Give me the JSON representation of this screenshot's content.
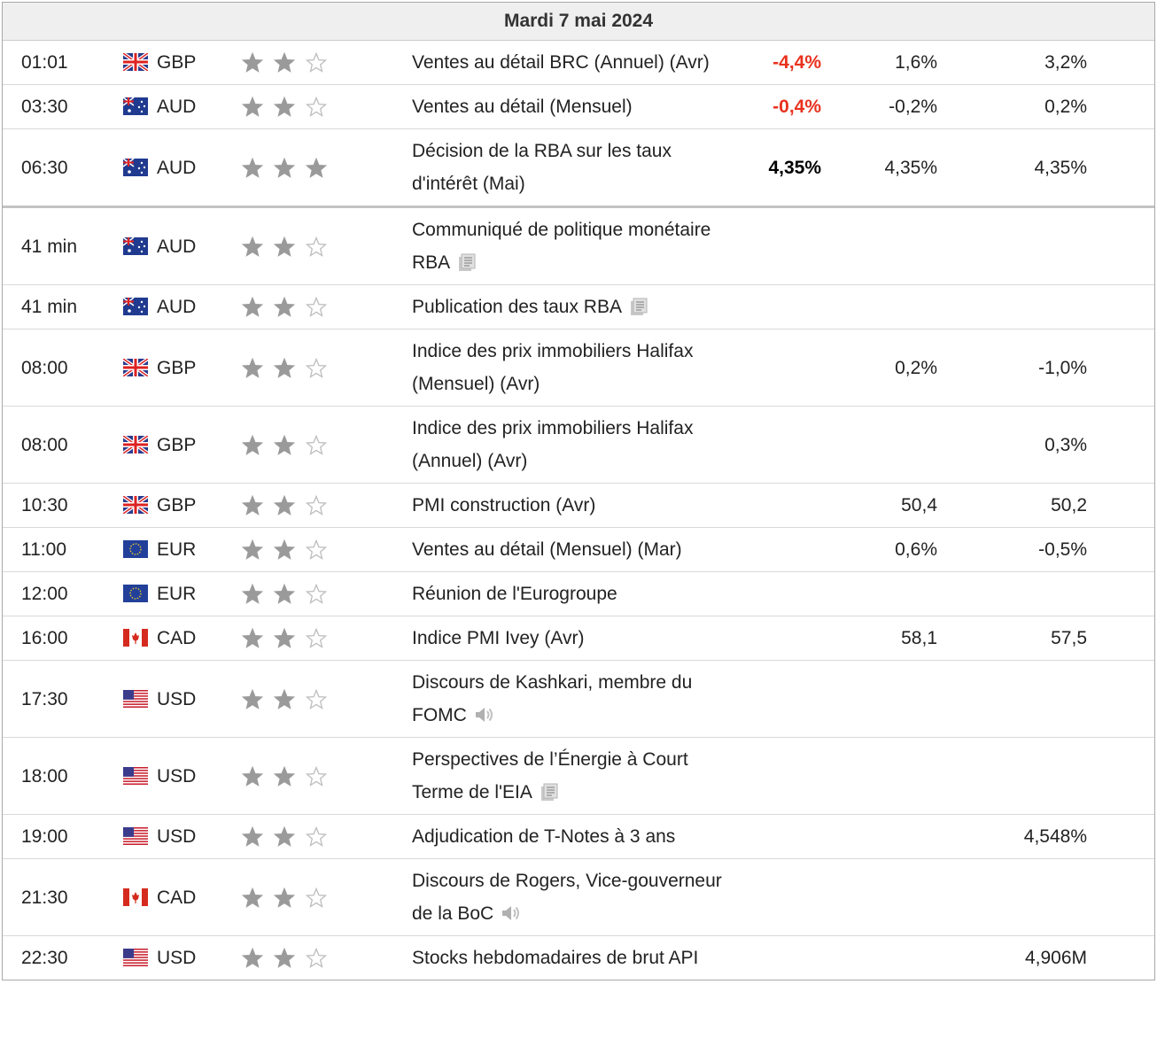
{
  "header": {
    "title": "Mardi 7 mai 2024"
  },
  "rows": [
    {
      "time": "01:01",
      "currency": "GBP",
      "importance": 2,
      "event": "Ventes au détail BRC (Annuel) (Avr)",
      "actual": "-4,4%",
      "actual_color": "#e8321e",
      "forecast": "1,6%",
      "previous": "3,2%"
    },
    {
      "time": "03:30",
      "currency": "AUD",
      "importance": 2,
      "event": "Ventes au détail (Mensuel)",
      "actual": "-0,4%",
      "actual_color": "#e8321e",
      "forecast": "-0,2%",
      "previous": "0,2%"
    },
    {
      "time": "06:30",
      "currency": "AUD",
      "importance": 3,
      "event": "Décision de la RBA sur les taux d'intérêt (Mai)",
      "actual": "4,35%",
      "actual_color": "#000000",
      "forecast": "4,35%",
      "previous": "4,35%"
    },
    {
      "time": "41 min",
      "currency": "AUD",
      "importance": 2,
      "event": "Communiqué de politique monétaire RBA"
    },
    {
      "time": "41 min",
      "currency": "AUD",
      "importance": 2,
      "event": "Publication des taux RBA"
    },
    {
      "time": "08:00",
      "currency": "GBP",
      "importance": 2,
      "event": "Indice des prix immobiliers Halifax (Mensuel) (Avr)",
      "forecast": "0,2%",
      "previous": "-1,0%"
    },
    {
      "time": "08:00",
      "currency": "GBP",
      "importance": 2,
      "event": "Indice des prix immobiliers Halifax (Annuel) (Avr)",
      "previous": "0,3%"
    },
    {
      "time": "10:30",
      "currency": "GBP",
      "importance": 2,
      "event": "PMI construction (Avr)",
      "forecast": "50,4",
      "previous": "50,2"
    },
    {
      "time": "11:00",
      "currency": "EUR",
      "importance": 2,
      "event": "Ventes au détail (Mensuel) (Mar)",
      "forecast": "0,6%",
      "previous": "-0,5%"
    },
    {
      "time": "12:00",
      "currency": "EUR",
      "importance": 2,
      "event": "Réunion de l'Eurogroupe"
    },
    {
      "time": "16:00",
      "currency": "CAD",
      "importance": 2,
      "event": "Indice PMI Ivey (Avr)",
      "forecast": "58,1",
      "previous": "57,5"
    },
    {
      "time": "17:30",
      "currency": "USD",
      "importance": 2,
      "event": "Discours de Kashkari, membre du FOMC"
    },
    {
      "time": "18:00",
      "currency": "USD",
      "importance": 2,
      "event": "Perspectives de l’Énergie à Court Terme de l'EIA"
    },
    {
      "time": "19:00",
      "currency": "USD",
      "importance": 2,
      "event": "Adjudication de T-Notes à 3 ans",
      "previous": "4,548%"
    },
    {
      "time": "21:30",
      "currency": "CAD",
      "importance": 2,
      "event": "Discours de Rogers, Vice-gouverneur de la BoC"
    },
    {
      "time": "22:30",
      "currency": "USD",
      "importance": 2,
      "event": "Stocks hebdomadaires de brut API",
      "previous": "4,906M"
    }
  ]
}
